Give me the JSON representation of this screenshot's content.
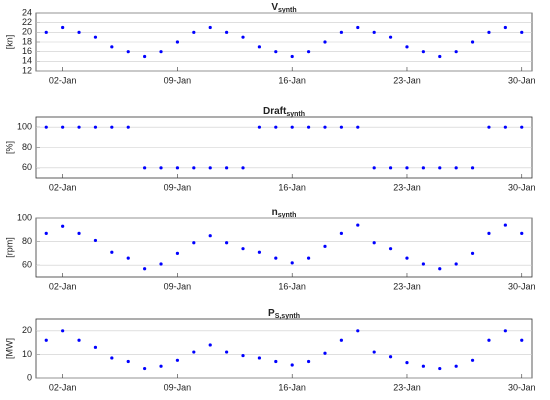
{
  "chart_data": [
    {
      "type": "scatter",
      "title": "V",
      "title_subscript": "synth",
      "y_label": "[kn]",
      "color": "#0000ff",
      "grid": true,
      "x": [
        "01-Jan",
        "02-Jan",
        "03-Jan",
        "04-Jan",
        "05-Jan",
        "06-Jan",
        "07-Jan",
        "08-Jan",
        "09-Jan",
        "10-Jan",
        "11-Jan",
        "12-Jan",
        "13-Jan",
        "14-Jan",
        "15-Jan",
        "16-Jan",
        "17-Jan",
        "18-Jan",
        "19-Jan",
        "20-Jan",
        "21-Jan",
        "22-Jan",
        "23-Jan",
        "24-Jan",
        "25-Jan",
        "26-Jan",
        "27-Jan",
        "28-Jan",
        "29-Jan",
        "30-Jan"
      ],
      "xticks": [
        "02-Jan",
        "09-Jan",
        "16-Jan",
        "23-Jan",
        "30-Jan"
      ],
      "values": [
        20,
        21,
        20,
        19,
        17,
        16,
        15,
        16,
        18,
        20,
        21,
        20,
        19,
        17,
        16,
        15,
        16,
        18,
        20,
        21,
        20,
        19,
        17,
        16,
        15,
        16,
        18,
        20,
        21,
        20
      ],
      "ylim": [
        12,
        24
      ],
      "yticks": [
        12,
        14,
        16,
        18,
        20,
        22,
        24
      ]
    },
    {
      "type": "scatter",
      "title": "Draft",
      "title_subscript": "synth",
      "y_label": "[%]",
      "color": "#0000ff",
      "grid": true,
      "x": [
        "01-Jan",
        "02-Jan",
        "03-Jan",
        "04-Jan",
        "05-Jan",
        "06-Jan",
        "07-Jan",
        "08-Jan",
        "09-Jan",
        "10-Jan",
        "11-Jan",
        "12-Jan",
        "13-Jan",
        "14-Jan",
        "15-Jan",
        "16-Jan",
        "17-Jan",
        "18-Jan",
        "19-Jan",
        "20-Jan",
        "21-Jan",
        "22-Jan",
        "23-Jan",
        "24-Jan",
        "25-Jan",
        "26-Jan",
        "27-Jan",
        "28-Jan",
        "29-Jan",
        "30-Jan"
      ],
      "xticks": [
        "02-Jan",
        "09-Jan",
        "16-Jan",
        "23-Jan",
        "30-Jan"
      ],
      "values": [
        100,
        100,
        100,
        100,
        100,
        100,
        60,
        60,
        60,
        60,
        60,
        60,
        60,
        100,
        100,
        100,
        100,
        100,
        100,
        100,
        60,
        60,
        60,
        60,
        60,
        60,
        60,
        100,
        100,
        100
      ],
      "ylim": [
        50,
        110
      ],
      "yticks": [
        60,
        80,
        100
      ]
    },
    {
      "type": "scatter",
      "title": "n",
      "title_subscript": "synth",
      "y_label": "[rpm]",
      "color": "#0000ff",
      "grid": true,
      "x": [
        "01-Jan",
        "02-Jan",
        "03-Jan",
        "04-Jan",
        "05-Jan",
        "06-Jan",
        "07-Jan",
        "08-Jan",
        "09-Jan",
        "10-Jan",
        "11-Jan",
        "12-Jan",
        "13-Jan",
        "14-Jan",
        "15-Jan",
        "16-Jan",
        "17-Jan",
        "18-Jan",
        "19-Jan",
        "20-Jan",
        "21-Jan",
        "22-Jan",
        "23-Jan",
        "24-Jan",
        "25-Jan",
        "26-Jan",
        "27-Jan",
        "28-Jan",
        "29-Jan",
        "30-Jan"
      ],
      "xticks": [
        "02-Jan",
        "09-Jan",
        "16-Jan",
        "23-Jan",
        "30-Jan"
      ],
      "values": [
        87,
        93,
        87,
        81,
        71,
        66,
        57,
        61,
        70,
        79,
        85,
        79,
        74,
        71,
        66,
        62,
        66,
        76,
        87,
        94,
        79,
        74,
        66,
        61,
        57,
        61,
        70,
        87,
        94,
        87
      ],
      "ylim": [
        50,
        100
      ],
      "yticks": [
        60,
        80,
        100
      ]
    },
    {
      "type": "scatter",
      "title": "P",
      "title_subscript": "S,synth",
      "y_label": "[MW]",
      "color": "#0000ff",
      "grid": true,
      "x": [
        "01-Jan",
        "02-Jan",
        "03-Jan",
        "04-Jan",
        "05-Jan",
        "06-Jan",
        "07-Jan",
        "08-Jan",
        "09-Jan",
        "10-Jan",
        "11-Jan",
        "12-Jan",
        "13-Jan",
        "14-Jan",
        "15-Jan",
        "16-Jan",
        "17-Jan",
        "18-Jan",
        "19-Jan",
        "20-Jan",
        "21-Jan",
        "22-Jan",
        "23-Jan",
        "24-Jan",
        "25-Jan",
        "26-Jan",
        "27-Jan",
        "28-Jan",
        "29-Jan",
        "30-Jan"
      ],
      "xticks": [
        "02-Jan",
        "09-Jan",
        "16-Jan",
        "23-Jan",
        "30-Jan"
      ],
      "values": [
        16,
        20,
        16,
        13,
        8.5,
        7,
        4,
        5,
        7.5,
        11,
        14,
        11,
        9.5,
        8.5,
        7,
        5.5,
        7,
        10.5,
        16,
        20,
        11,
        9,
        6.5,
        5,
        4,
        5,
        7.5,
        16,
        20,
        16
      ],
      "ylim": [
        0,
        25
      ],
      "yticks": [
        0,
        10,
        20
      ]
    }
  ]
}
